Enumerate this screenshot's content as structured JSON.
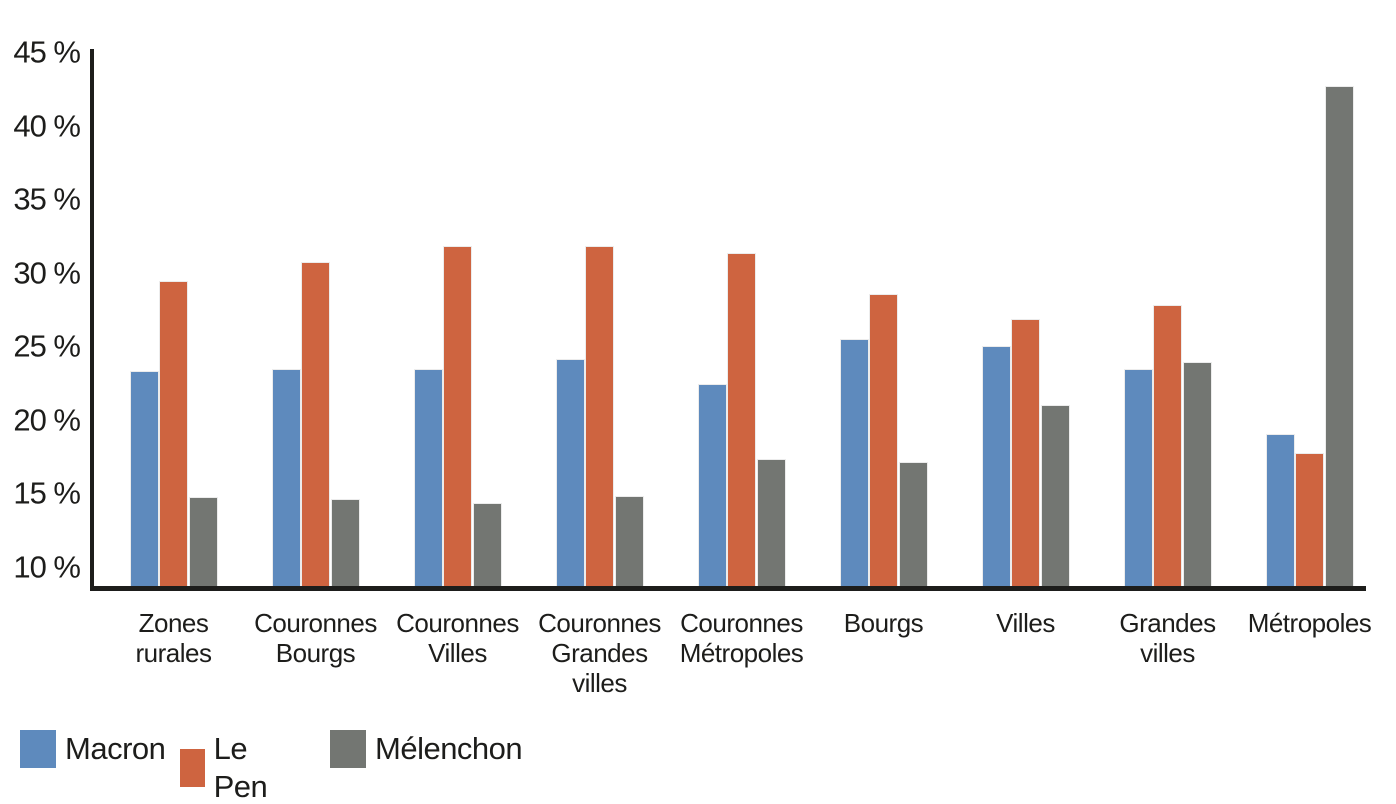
{
  "chart_data": {
    "type": "bar",
    "title": "",
    "xlabel": "",
    "ylabel": "",
    "unit": "%",
    "grid": false,
    "legend_position": "bottom-left",
    "ylim": [
      8.67,
      45.2
    ],
    "y_ticks": [
      {
        "value": 10,
        "label": "10 %"
      },
      {
        "value": 15,
        "label": "15 %"
      },
      {
        "value": 20,
        "label": "20 %"
      },
      {
        "value": 25,
        "label": "25 %"
      },
      {
        "value": 30,
        "label": "30 %"
      },
      {
        "value": 35,
        "label": "35 %"
      },
      {
        "value": 40,
        "label": "40 %"
      },
      {
        "value": 45,
        "label": "45 %"
      }
    ],
    "categories": [
      {
        "id": "zones-rurales",
        "label_lines": [
          "Zones",
          "rurales"
        ]
      },
      {
        "id": "couronnes-bourgs",
        "label_lines": [
          "Couronnes",
          "Bourgs"
        ]
      },
      {
        "id": "couronnes-villes",
        "label_lines": [
          "Couronnes",
          "Villes"
        ]
      },
      {
        "id": "couronnes-grandes-villes",
        "label_lines": [
          "Couronnes",
          "Grandes",
          "villes"
        ]
      },
      {
        "id": "couronnes-metropoles",
        "label_lines": [
          "Couronnes",
          "Métropoles"
        ]
      },
      {
        "id": "bourgs",
        "label_lines": [
          "Bourgs"
        ]
      },
      {
        "id": "villes",
        "label_lines": [
          "Villes"
        ]
      },
      {
        "id": "grandes-villes",
        "label_lines": [
          "Grandes",
          "villes"
        ]
      },
      {
        "id": "metropoles",
        "label_lines": [
          "Métropoles"
        ]
      }
    ],
    "series": [
      {
        "name": "Macron",
        "color": "#5E8ABD",
        "values": [
          23.3,
          23.4,
          23.4,
          24.1,
          22.4,
          25.5,
          25.0,
          23.4,
          19.0
        ]
      },
      {
        "name": "Le Pen",
        "color": "#CE6440",
        "values": [
          29.4,
          30.7,
          31.8,
          31.8,
          31.3,
          28.5,
          26.8,
          27.8,
          17.7
        ]
      },
      {
        "name": "Mélenchon",
        "color": "#737672",
        "values": [
          14.7,
          14.6,
          14.3,
          14.8,
          17.3,
          17.1,
          21.0,
          23.9,
          42.7
        ]
      }
    ]
  },
  "colors": {
    "axis": "#1d1d1b",
    "text": "#1d1d1b",
    "background": "#ffffff",
    "bar_stroke": "#ececec"
  }
}
